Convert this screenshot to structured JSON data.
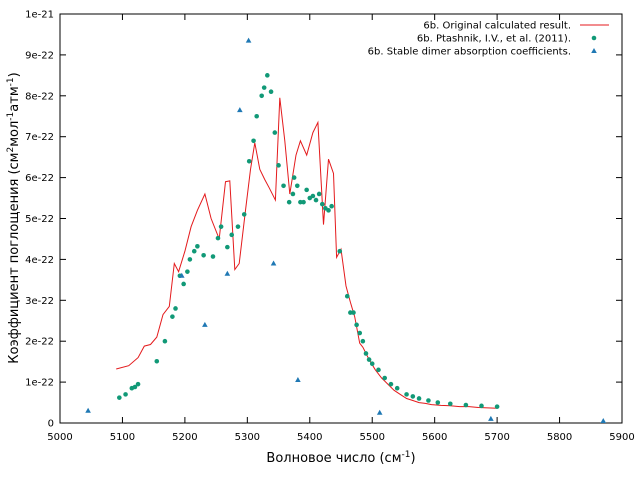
{
  "chart_data": {
    "type": "scatter",
    "xlabel_main": "Волновое число (см",
    "xlabel_sup": "-1",
    "xlabel_end": ")",
    "ylabel_main": "Коэффициент поглощения (см",
    "ylabel_sup1": "2",
    "ylabel_mid": "мол",
    "ylabel_sup2": "-1",
    "ylabel_mid2": "атм",
    "ylabel_sup3": "-1",
    "ylabel_end": ")",
    "xlim": [
      5000,
      5900
    ],
    "ylim": [
      0,
      1e-21
    ],
    "xticks": [
      5000,
      5100,
      5200,
      5300,
      5400,
      5500,
      5600,
      5700,
      5800,
      5900
    ],
    "xtick_labels": [
      "5000",
      "5100",
      "5200",
      "5300",
      "5400",
      "5500",
      "5600",
      "5700",
      "5800",
      "5900"
    ],
    "yticks": [
      0,
      1e-22,
      2e-22,
      3e-22,
      4e-22,
      5e-22,
      6e-22,
      7e-22,
      8e-22,
      9e-22,
      1e-21
    ],
    "ytick_labels": [
      "0",
      "1e-22",
      "2e-22",
      "3e-22",
      "4e-22",
      "5e-22",
      "6e-22",
      "7e-22",
      "8e-22",
      "9e-22",
      "1e-21"
    ],
    "legend_position": "top-right",
    "series": [
      {
        "name": "6b. Original calculated result.",
        "kind": "line",
        "color": "#e41a1c",
        "x": [
          5090,
          5110,
          5125,
          5135,
          5145,
          5155,
          5165,
          5175,
          5183,
          5190,
          5200,
          5210,
          5220,
          5232,
          5242,
          5255,
          5265,
          5272,
          5280,
          5287,
          5297,
          5305,
          5312,
          5320,
          5328,
          5335,
          5345,
          5352,
          5360,
          5368,
          5378,
          5385,
          5395,
          5405,
          5413,
          5422,
          5430,
          5438,
          5443,
          5450,
          5458,
          5465,
          5472,
          5480,
          5485,
          5495,
          5505,
          5515,
          5525,
          5535,
          5545,
          5555,
          5565,
          5575,
          5585,
          5595,
          5610,
          5625,
          5640,
          5655,
          5670,
          5685,
          5700
        ],
        "y": [
          1.32e-22,
          1.4e-22,
          1.6e-22,
          1.88e-22,
          1.92e-22,
          2.1e-22,
          2.65e-22,
          2.85e-22,
          3.9e-22,
          3.7e-22,
          4.2e-22,
          4.8e-22,
          5.2e-22,
          5.6e-22,
          5e-22,
          4.5e-22,
          5.9e-22,
          5.92e-22,
          3.75e-22,
          3.9e-22,
          5.2e-22,
          6.2e-22,
          6.85e-22,
          6.2e-22,
          5.95e-22,
          5.75e-22,
          5.45e-22,
          7.95e-22,
          6.9e-22,
          5.6e-22,
          6.55e-22,
          6.9e-22,
          6.55e-22,
          7.1e-22,
          7.35e-22,
          4.85e-22,
          6.45e-22,
          6.1e-22,
          4.05e-22,
          4.25e-22,
          3.35e-22,
          2.95e-22,
          2.6e-22,
          1.95e-22,
          1.85e-22,
          1.55e-22,
          1.3e-22,
          1.1e-22,
          9.5e-23,
          8e-23,
          7e-23,
          6e-23,
          5.5e-23,
          5e-23,
          4.8e-23,
          4.5e-23,
          4.3e-23,
          4.2e-23,
          4e-23,
          4e-23,
          3.8e-23,
          3.7e-23,
          3.6e-23
        ]
      },
      {
        "name": "6b. Ptashnik, I.V., et al. (2011).",
        "kind": "circle",
        "color": "#119977",
        "x": [
          5095,
          5105,
          5115,
          5120,
          5125,
          5155,
          5168,
          5180,
          5185,
          5192,
          5198,
          5204,
          5208,
          5215,
          5220,
          5230,
          5245,
          5253,
          5258,
          5268,
          5275,
          5285,
          5295,
          5303,
          5310,
          5315,
          5323,
          5327,
          5332,
          5338,
          5344,
          5350,
          5358,
          5367,
          5373,
          5375,
          5380,
          5385,
          5390,
          5395,
          5400,
          5405,
          5410,
          5415,
          5420,
          5425,
          5430,
          5435,
          5448,
          5460,
          5465,
          5470,
          5475,
          5480,
          5485,
          5490,
          5495,
          5500,
          5510,
          5520,
          5530,
          5540,
          5555,
          5565,
          5575,
          5590,
          5605,
          5625,
          5650,
          5675,
          5700
        ],
        "y": [
          6.2e-23,
          7e-23,
          8.5e-23,
          8.8e-23,
          9.5e-23,
          1.51e-22,
          2e-22,
          2.6e-22,
          2.8e-22,
          3.6e-22,
          3.4e-22,
          3.7e-22,
          4e-22,
          4.2e-22,
          4.32e-22,
          4.1e-22,
          4.07e-22,
          4.52e-22,
          4.8e-22,
          4.3e-22,
          4.6e-22,
          4.8e-22,
          5.1e-22,
          6.4e-22,
          6.9e-22,
          7.5e-22,
          8e-22,
          8.2e-22,
          8.5e-22,
          8.1e-22,
          7.1e-22,
          6.3e-22,
          5.8e-22,
          5.4e-22,
          5.6e-22,
          6e-22,
          5.8e-22,
          5.4e-22,
          5.4e-22,
          5.7e-22,
          5.5e-22,
          5.55e-22,
          5.45e-22,
          5.6e-22,
          5.35e-22,
          5.25e-22,
          5.2e-22,
          5.3e-22,
          4.2e-22,
          3.1e-22,
          2.7e-22,
          2.7e-22,
          2.4e-22,
          2.2e-22,
          2e-22,
          1.7e-22,
          1.55e-22,
          1.45e-22,
          1.3e-22,
          1.1e-22,
          9.5e-23,
          8.5e-23,
          7e-23,
          6.5e-23,
          6e-23,
          5.5e-23,
          5e-23,
          4.7e-23,
          4.4e-23,
          4.2e-23,
          4e-23
        ]
      },
      {
        "name": "6b. Stable dimer absorption coefficients.",
        "kind": "triangle",
        "color": "#1f78b4",
        "x": [
          5045,
          5195,
          5232,
          5268,
          5288,
          5302,
          5342,
          5381,
          5512,
          5690,
          5870
        ],
        "y": [
          3e-23,
          3.6e-22,
          2.4e-22,
          3.65e-22,
          7.65e-22,
          9.35e-22,
          3.9e-22,
          1.05e-22,
          2.5e-23,
          1e-23,
          5e-24
        ]
      }
    ]
  }
}
